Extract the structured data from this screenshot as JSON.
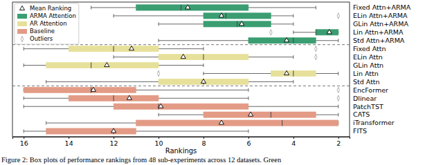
{
  "chart_data": {
    "type": "box",
    "orientation": "horizontal",
    "xlabel": "Rankings",
    "caption": "Figure 2: Box plots of performance rankings from 48 sub-experiments across 12 datasets. Green",
    "xlim": [
      16.5,
      1.5
    ],
    "xticks": [
      16,
      14,
      12,
      10,
      8,
      6,
      4,
      2
    ],
    "legend": "upper left",
    "mean_label": "Mean Ranking",
    "outlier_label": "Outliers",
    "series": [
      {
        "name": "ARMA Attention",
        "color": "#3a9e72",
        "categories": [
          "Fixed Attn+ARMA",
          "ELin Attn+ARMA",
          "GLin Attn+ARMA",
          "Lin Attn+ARMA",
          "Std Attn+ARMA"
        ],
        "boxes": [
          {
            "low": 3,
            "q1": 6,
            "median": 9,
            "q3": 11,
            "high": 13,
            "mean": 8.7,
            "outliers": []
          },
          {
            "low": 4,
            "q1": 5,
            "median": 7,
            "q3": 8,
            "high": 12,
            "mean": 7.2,
            "outliers": [
              2
            ]
          },
          {
            "low": 4,
            "q1": 5,
            "median": 6.5,
            "q3": 8,
            "high": 10,
            "mean": 6.3,
            "outliers": []
          },
          {
            "low": 2,
            "q1": 2,
            "median": 3,
            "q3": 3,
            "high": 4,
            "mean": 2.4,
            "outliers": [
              5
            ]
          },
          {
            "low": 2,
            "q1": 3,
            "median": 4,
            "q3": 6,
            "high": 10,
            "mean": 4.3,
            "outliers": []
          }
        ]
      },
      {
        "name": "AR Attention",
        "color": "#e6e09a",
        "categories": [
          "Fixed Attn",
          "ELin Attn",
          "GLin Attn",
          "Lin Attn",
          "Std Attn"
        ],
        "boxes": [
          {
            "low": 8,
            "q1": 10,
            "median": 12,
            "q3": 14,
            "high": 16,
            "mean": 11.2,
            "outliers": [
              3
            ]
          },
          {
            "low": 4,
            "q1": 6,
            "median": 8,
            "q3": 10,
            "high": 12,
            "mean": 8.9,
            "outliers": [
              3
            ]
          },
          {
            "low": 8,
            "q1": 10,
            "median": 13,
            "q3": 15,
            "high": 16,
            "mean": 12.3,
            "outliers": []
          },
          {
            "low": 2,
            "q1": 3,
            "median": 4,
            "q3": 5,
            "high": 8,
            "mean": 4.3,
            "outliers": [
              10
            ]
          },
          {
            "low": 4,
            "q1": 6,
            "median": 8,
            "q3": 10,
            "high": 15,
            "mean": 8,
            "outliers": []
          }
        ]
      },
      {
        "name": "Baseline",
        "color": "#e39b86",
        "categories": [
          "EncFormer",
          "Dlinear",
          "PatchTST",
          "CATS",
          "iTransformer",
          "FITS"
        ],
        "boxes": [
          {
            "low": 6,
            "q1": 11,
            "median": 13,
            "q3": 16,
            "high": 16,
            "mean": 12.9,
            "outliers": [
              2
            ]
          },
          {
            "low": 6,
            "q1": 10,
            "median": 12,
            "q3": 14,
            "high": 16,
            "mean": 11.3,
            "outliers": [
              2
            ]
          },
          {
            "low": 2,
            "q1": 6,
            "median": 10,
            "q3": 12,
            "high": 16,
            "mean": 9.9,
            "outliers": []
          },
          {
            "low": 2,
            "q1": 3,
            "median": 5,
            "q3": 8,
            "high": 10,
            "mean": 5.9,
            "outliers": []
          },
          {
            "low": 2,
            "q1": 2,
            "median": 4.5,
            "q3": 11,
            "high": 15,
            "mean": 7.2,
            "outliers": []
          },
          {
            "low": 6,
            "q1": 11,
            "median": 12,
            "q3": 15,
            "high": 16,
            "mean": 12,
            "outliers": []
          }
        ]
      }
    ]
  }
}
